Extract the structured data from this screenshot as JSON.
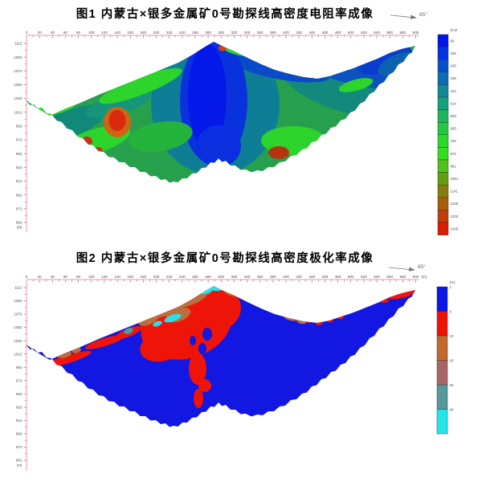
{
  "style": {
    "background": "#ffffff",
    "axis_color": "#f09a9a",
    "tick_color": "#7a7ac2",
    "label_color": "#4a4a55",
    "title_color": "#000000"
  },
  "axes": {
    "x_min": 0,
    "x_max": 600,
    "x_label_step": 20,
    "x_minor_step": 10,
    "y_top": 1112,
    "y_bottom": 852,
    "y_label_step": 20,
    "y_minor_step": 10
  },
  "figures": [
    {
      "title": "图1 内蒙古×银多金属矿0号勘探线高密度电阻率成像",
      "azimuth": "65°",
      "x_axis": {
        "unit": ""
      },
      "y_axis": {
        "unit": "(M)"
      },
      "colorbar": {
        "unit": "Ω M",
        "labels": [
          "66",
          "156",
          "245",
          "335",
          "424",
          "514",
          "603",
          "693",
          "782",
          "872",
          "961",
          "1051",
          "1141",
          "1230",
          "1320",
          "1409"
        ],
        "colors": [
          "#0214ee",
          "#0232e4",
          "#0350cf",
          "#0c6cb4",
          "#128898",
          "#17a07c",
          "#1cb45e",
          "#22c744",
          "#2bd92b",
          "#35dc20",
          "#4cc41a",
          "#649c14",
          "#877c10",
          "#a85c0c",
          "#c23c08",
          "#d81e04"
        ]
      }
    },
    {
      "title": "图2 内蒙古×银多金属矿0号勘探线高密度极化率成像",
      "azimuth": "65°",
      "x_axis": {
        "unit": "(m)"
      },
      "y_axis": {
        "unit": "(m)"
      },
      "colorbar": {
        "unit": "(%)",
        "labels": [
          "1",
          "8",
          "10",
          "20",
          "30",
          "40"
        ],
        "colors": [
          "#0b16e8",
          "#ee1207",
          "#c4692e",
          "#aa6666",
          "#55999b",
          "#22e6ee"
        ]
      }
    }
  ],
  "chart_data": [
    {
      "type": "heatmap",
      "title": "图1 内蒙古×银多金属矿0号勘探线高密度电阻率成像",
      "survey_azimuth": "65°",
      "x_unit": "m",
      "x_range": [
        0,
        600
      ],
      "x_tick_step": 20,
      "y_unit": "M (标高)",
      "y_range": [
        852,
        1112
      ],
      "y_tick_step": 20,
      "value_unit": "Ω·M",
      "value_scale": [
        66,
        156,
        245,
        335,
        424,
        514,
        603,
        693,
        782,
        872,
        961,
        1051,
        1141,
        1230,
        1320,
        1409
      ],
      "legend_position": "right",
      "grid": false,
      "features": [
        "断面随地形起伏：山顶位于约290 m处（标高约1112 m），两侧为沟谷，左谷最低点约230 m（标高约910 m）",
        "低阻带（蓝色，<250 Ω·M）近直立分布于山顶正下方约250-310 m处，向深部延伸至断面底部",
        "右侧山坡上部及右端尖灭处呈蓝色低阻",
        "高阻异常（红色，>1200 Ω·M）位于约120-160 m、标高约985-1015 m处，外围为橙色过渡带",
        "次级高阻异常（暗红）位于约385 m、标高约955 m处，周围为亮绿色中阻",
        "背景以绿色中等电阻率（约600-1000 Ω·M）为主"
      ]
    },
    {
      "type": "heatmap",
      "title": "图2 内蒙古×银多金属矿0号勘探线高密度极化率成像",
      "survey_azimuth": "65°",
      "x_unit": "m",
      "x_range": [
        0,
        600
      ],
      "x_tick_step": 20,
      "y_unit": "m (标高)",
      "y_range": [
        852,
        1112
      ],
      "y_tick_step": 20,
      "value_unit": "%",
      "value_scale": [
        1,
        8,
        10,
        20,
        30,
        40
      ],
      "legend_position": "right",
      "grid": false,
      "features": [
        "断面绝大部分为低极化率（蓝色，<8%）",
        "高极化率异常（红色，8-10%）集中于山顶西侧斜坡浅部约180-330 m处，并呈舌状向深部延伸至标高约950 m",
        "10-30%（棕褐色、褐紫色）异常沿山坡地表呈带状分布",
        "山顶脊部出现>40%（青色）极化率条带",
        "左右两侧山坡地表及右端尖灭处见零星红色高极化点"
      ]
    }
  ]
}
